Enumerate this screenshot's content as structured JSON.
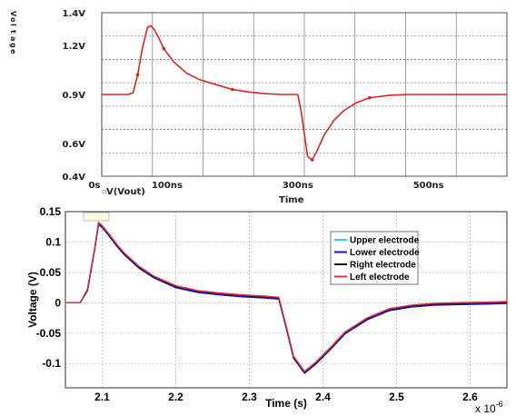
{
  "chart_data": [
    {
      "type": "line",
      "ylabel": "Voltage",
      "xlabel": "Time",
      "trace_label": "V(Vout)",
      "ylim": [
        0.4,
        1.4
      ],
      "xlim": [
        0,
        620
      ],
      "y_ticks": [
        {
          "label": "1.4V",
          "value": 1.4
        },
        {
          "label": "1.2V",
          "value": 1.2
        },
        {
          "label": "0.9V",
          "value": 0.9
        },
        {
          "label": "0.6V",
          "value": 0.6
        },
        {
          "label": "0.4V",
          "value": 0.4
        }
      ],
      "x_ticks": [
        {
          "label": "0s",
          "value": 0
        },
        {
          "label": "100ns",
          "value": 100
        },
        {
          "label": "300ns",
          "value": 300
        },
        {
          "label": "500ns",
          "value": 500
        }
      ],
      "grid": true,
      "colors": {
        "line": "#d42a1e",
        "grid_dash": "#777777"
      },
      "series": [
        {
          "name": "V(Vout)",
          "x": [
            0,
            40,
            48,
            55,
            62,
            70,
            75,
            80,
            88,
            95,
            110,
            130,
            150,
            175,
            200,
            225,
            250,
            275,
            290,
            300,
            305,
            310,
            315,
            322,
            330,
            340,
            355,
            370,
            390,
            410,
            440,
            470,
            500,
            540,
            580,
            620
          ],
          "values": [
            0.9,
            0.9,
            0.91,
            1.02,
            1.18,
            1.31,
            1.32,
            1.3,
            1.24,
            1.18,
            1.1,
            1.03,
            0.99,
            0.96,
            0.93,
            0.915,
            0.905,
            0.9,
            0.9,
            0.9,
            0.8,
            0.66,
            0.52,
            0.5,
            0.56,
            0.65,
            0.74,
            0.8,
            0.85,
            0.88,
            0.895,
            0.9,
            0.9,
            0.9,
            0.9,
            0.9
          ]
        }
      ]
    },
    {
      "type": "line",
      "ylabel": "Voltage (V)",
      "xlabel": "Time (s)",
      "x_multiplier": "x 10",
      "x_multiplier_exp": "-6",
      "xlim": [
        2.05,
        2.65
      ],
      "ylim": [
        -0.14,
        0.15
      ],
      "grid": true,
      "legend_position": "top-right",
      "x_ticks": [
        "2.1",
        "2.2",
        "2.3",
        "2.4",
        "2.5",
        "2.6"
      ],
      "y_ticks": [
        "0.15",
        "0.1",
        "0.05",
        "0",
        "-0.05",
        "-0.1"
      ],
      "x": [
        2.05,
        2.07,
        2.08,
        2.09,
        2.095,
        2.1,
        2.11,
        2.12,
        2.13,
        2.15,
        2.17,
        2.2,
        2.23,
        2.26,
        2.29,
        2.32,
        2.34,
        2.35,
        2.36,
        2.375,
        2.39,
        2.41,
        2.43,
        2.46,
        2.49,
        2.52,
        2.55,
        2.58,
        2.62,
        2.65
      ],
      "series": [
        {
          "name": "Upper electrode",
          "color": "#3ad4d8",
          "values": [
            0.0,
            0.0,
            0.02,
            0.09,
            0.13,
            0.125,
            0.11,
            0.094,
            0.08,
            0.058,
            0.042,
            0.026,
            0.018,
            0.014,
            0.011,
            0.009,
            0.007,
            -0.04,
            -0.09,
            -0.115,
            -0.1,
            -0.076,
            -0.05,
            -0.027,
            -0.012,
            -0.006,
            -0.003,
            -0.002,
            -0.001,
            0.0
          ]
        },
        {
          "name": "Lower electrode",
          "color": "#1414c8",
          "values": [
            0.0,
            0.0,
            0.02,
            0.089,
            0.129,
            0.124,
            0.109,
            0.093,
            0.079,
            0.057,
            0.041,
            0.025,
            0.017,
            0.013,
            0.01,
            0.008,
            0.006,
            -0.041,
            -0.091,
            -0.116,
            -0.101,
            -0.077,
            -0.051,
            -0.028,
            -0.013,
            -0.007,
            -0.004,
            -0.003,
            -0.002,
            -0.001
          ]
        },
        {
          "name": "Right electrode",
          "color": "#111111",
          "values": [
            0.0,
            0.0,
            0.021,
            0.09,
            0.131,
            0.126,
            0.111,
            0.095,
            0.081,
            0.059,
            0.043,
            0.027,
            0.019,
            0.015,
            0.012,
            0.01,
            0.008,
            -0.039,
            -0.089,
            -0.114,
            -0.099,
            -0.075,
            -0.049,
            -0.026,
            -0.011,
            -0.005,
            -0.002,
            -0.001,
            0.0,
            0.001
          ]
        },
        {
          "name": "Left electrode",
          "color": "#e03040",
          "values": [
            0.0,
            0.0,
            0.022,
            0.091,
            0.132,
            0.127,
            0.112,
            0.096,
            0.082,
            0.06,
            0.044,
            0.028,
            0.02,
            0.016,
            0.013,
            0.011,
            0.009,
            -0.038,
            -0.088,
            -0.113,
            -0.098,
            -0.074,
            -0.048,
            -0.025,
            -0.01,
            -0.004,
            -0.001,
            0.0,
            0.001,
            0.002
          ]
        }
      ]
    }
  ]
}
